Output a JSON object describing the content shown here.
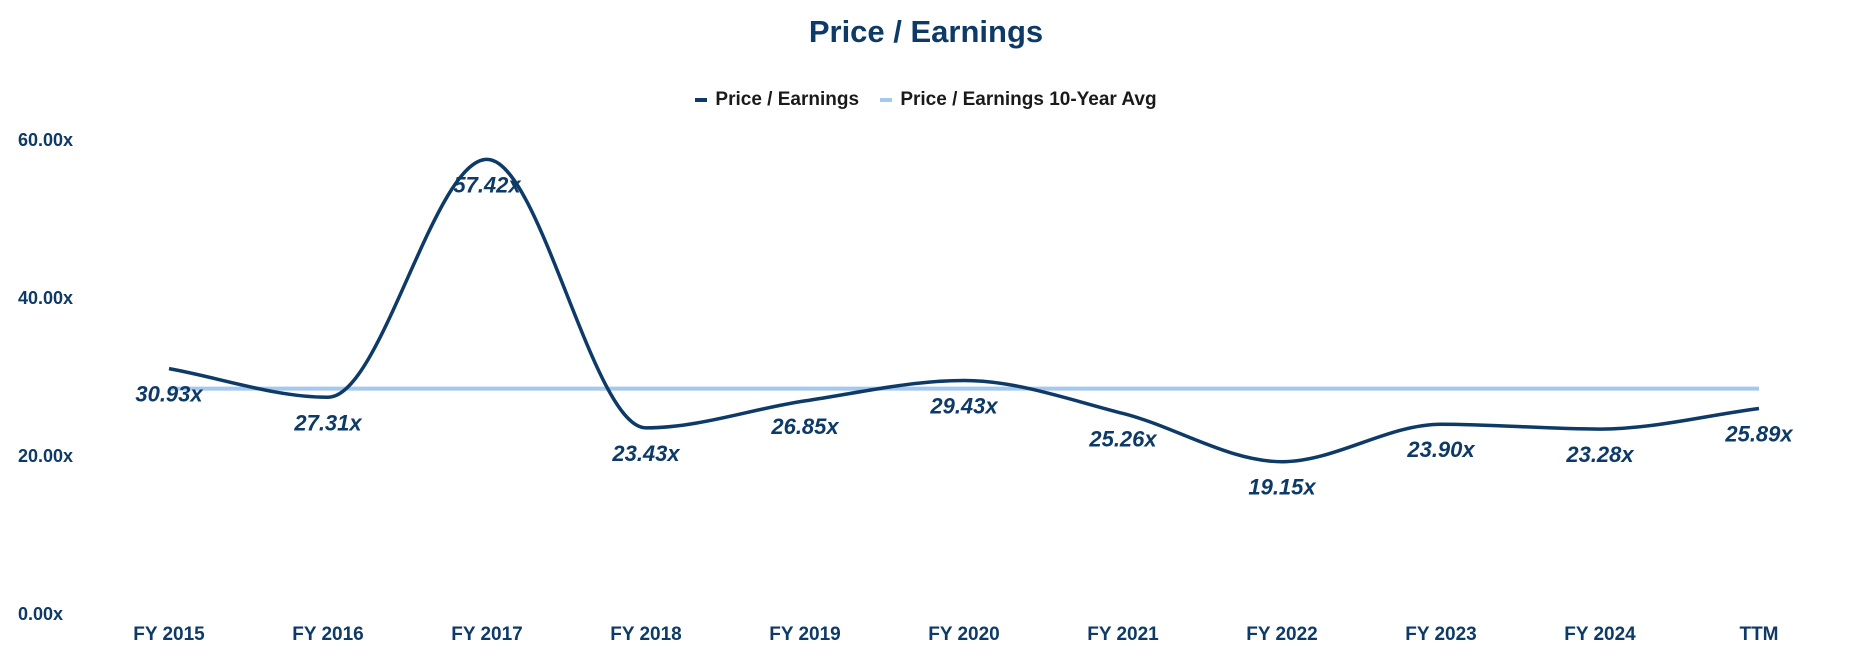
{
  "chart_data": {
    "type": "line",
    "title": "Price / Earnings",
    "categories": [
      "FY 2015",
      "FY 2016",
      "FY 2017",
      "FY 2018",
      "FY 2019",
      "FY 2020",
      "FY 2021",
      "FY 2022",
      "FY 2023",
      "FY 2024",
      "TTM"
    ],
    "series": [
      {
        "name": "Price / Earnings",
        "values": [
          30.93,
          27.31,
          57.42,
          23.43,
          26.85,
          29.43,
          25.26,
          19.15,
          23.9,
          23.28,
          25.89
        ],
        "labels": [
          "30.93x",
          "27.31x",
          "57.42x",
          "23.43x",
          "26.85x",
          "29.43x",
          "25.26x",
          "19.15x",
          "23.90x",
          "23.28x",
          "25.89x"
        ],
        "color": "#0d3a66"
      },
      {
        "name": "Price / Earnings 10-Year Avg",
        "values": [
          28.4,
          28.4,
          28.4,
          28.4,
          28.4,
          28.4,
          28.4,
          28.4,
          28.4,
          28.4,
          28.4
        ],
        "color": "#a4c8ee"
      }
    ],
    "yticks": [
      {
        "value": 0,
        "label": "0.00x"
      },
      {
        "value": 20,
        "label": "20.00x"
      },
      {
        "value": 40,
        "label": "40.00x"
      },
      {
        "value": 60,
        "label": "60.00x"
      }
    ],
    "ylim": [
      0,
      60
    ],
    "grid": false,
    "legend_position": "top-center",
    "xlabel": "",
    "ylabel": ""
  }
}
